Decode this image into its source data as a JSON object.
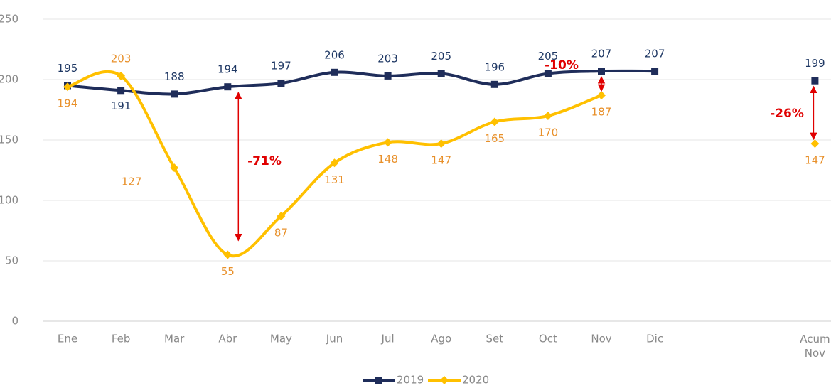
{
  "chart_data": {
    "type": "line",
    "categories": [
      "Ene",
      "Feb",
      "Mar",
      "Abr",
      "May",
      "Jun",
      "Jul",
      "Ago",
      "Set",
      "Oct",
      "Nov",
      "Dic",
      null,
      null,
      "Acum Nov"
    ],
    "series": [
      {
        "name": "2019",
        "color": "#1f2d5a",
        "label_color": "#1f3864",
        "values": [
          195,
          191,
          188,
          194,
          197,
          206,
          203,
          205,
          196,
          205,
          207,
          207,
          null,
          null,
          199
        ]
      },
      {
        "name": "2020",
        "color": "#ffc000",
        "label_color": "#e8902a",
        "values": [
          194,
          203,
          127,
          55,
          87,
          131,
          148,
          147,
          165,
          170,
          187,
          null,
          null,
          null,
          147
        ]
      }
    ],
    "annotations": [
      "-71%",
      "-10%",
      "-26%"
    ],
    "ylim": [
      0,
      250
    ],
    "yticks": [
      0,
      50,
      100,
      150,
      200,
      250
    ],
    "grid": true,
    "legend": "bottom"
  }
}
